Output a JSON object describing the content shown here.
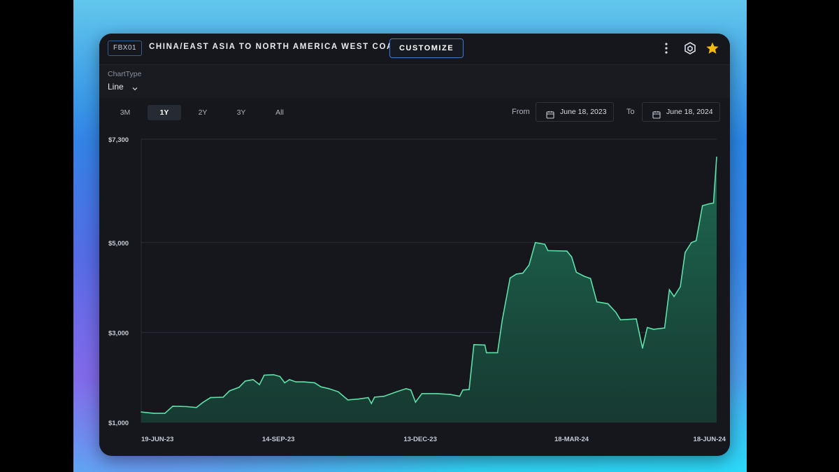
{
  "header": {
    "index_code": "FBX01",
    "route_title": "CHINA/EAST ASIA TO NORTH AMERICA WEST COAST",
    "customize_label": "CUSTOMIZE"
  },
  "icons": {
    "more": "more-vertical-icon",
    "share": "network-icon",
    "favorite": "star-icon"
  },
  "colors": {
    "line": "#5fe0a8",
    "fill_top": "#1e6e55",
    "fill_bottom": "#173d33",
    "star": "#f5b80f",
    "accent": "#3a7bd5"
  },
  "chart_type": {
    "label": "ChartType",
    "value": "Line"
  },
  "range": {
    "buttons": [
      "3M",
      "1Y",
      "2Y",
      "3Y",
      "All"
    ],
    "active": "1Y",
    "from_label": "From",
    "from_date": "June 18, 2023",
    "to_label": "To",
    "to_date": "June 18, 2024"
  },
  "chart_data": {
    "type": "area",
    "title": "",
    "xlabel": "",
    "ylabel": "",
    "x_tick_labels": [
      "19-JUN-23",
      "14-SEP-23",
      "13-DEC-23",
      "18-MAR-24",
      "18-JUN-24"
    ],
    "y_tick_labels": [
      "$1,000",
      "$3,000",
      "$5,000",
      "$7,300"
    ],
    "ylim": [
      1000,
      7300
    ],
    "grid": "horizontal",
    "x_start": "2023-06-19",
    "x_end": "2024-06-18",
    "series": [
      {
        "values": [
          [
            "2023-06-19",
            1230
          ],
          [
            "2023-06-27",
            1200
          ],
          [
            "2023-07-04",
            1200
          ],
          [
            "2023-07-09",
            1360
          ],
          [
            "2023-07-18",
            1350
          ],
          [
            "2023-07-24",
            1330
          ],
          [
            "2023-07-28",
            1440
          ],
          [
            "2023-08-02",
            1550
          ],
          [
            "2023-08-10",
            1560
          ],
          [
            "2023-08-14",
            1700
          ],
          [
            "2023-08-20",
            1780
          ],
          [
            "2023-08-24",
            1920
          ],
          [
            "2023-08-29",
            1950
          ],
          [
            "2023-09-02",
            1840
          ],
          [
            "2023-09-05",
            2050
          ],
          [
            "2023-09-11",
            2060
          ],
          [
            "2023-09-15",
            2020
          ],
          [
            "2023-09-18",
            1880
          ],
          [
            "2023-09-21",
            1950
          ],
          [
            "2023-09-25",
            1900
          ],
          [
            "2023-09-30",
            1900
          ],
          [
            "2023-10-07",
            1880
          ],
          [
            "2023-10-11",
            1790
          ],
          [
            "2023-10-16",
            1750
          ],
          [
            "2023-10-22",
            1680
          ],
          [
            "2023-10-28",
            1500
          ],
          [
            "2023-11-04",
            1520
          ],
          [
            "2023-11-10",
            1550
          ],
          [
            "2023-11-12",
            1420
          ],
          [
            "2023-11-14",
            1560
          ],
          [
            "2023-11-20",
            1580
          ],
          [
            "2023-11-28",
            1680
          ],
          [
            "2023-12-04",
            1750
          ],
          [
            "2023-12-07",
            1720
          ],
          [
            "2023-12-10",
            1450
          ],
          [
            "2023-12-14",
            1640
          ],
          [
            "2023-12-24",
            1640
          ],
          [
            "2024-01-01",
            1620
          ],
          [
            "2024-01-07",
            1580
          ],
          [
            "2024-01-09",
            1720
          ],
          [
            "2024-01-13",
            1730
          ],
          [
            "2024-01-16",
            2730
          ],
          [
            "2024-01-23",
            2720
          ],
          [
            "2024-01-24",
            2550
          ],
          [
            "2024-01-31",
            2550
          ],
          [
            "2024-02-03",
            3270
          ],
          [
            "2024-02-08",
            4210
          ],
          [
            "2024-02-12",
            4300
          ],
          [
            "2024-02-16",
            4320
          ],
          [
            "2024-02-20",
            4500
          ],
          [
            "2024-02-24",
            5000
          ],
          [
            "2024-03-01",
            4960
          ],
          [
            "2024-03-03",
            4820
          ],
          [
            "2024-03-15",
            4810
          ],
          [
            "2024-03-18",
            4680
          ],
          [
            "2024-03-21",
            4340
          ],
          [
            "2024-03-26",
            4250
          ],
          [
            "2024-03-30",
            4200
          ],
          [
            "2024-04-03",
            3680
          ],
          [
            "2024-04-10",
            3640
          ],
          [
            "2024-04-15",
            3450
          ],
          [
            "2024-04-18",
            3280
          ],
          [
            "2024-04-28",
            3300
          ],
          [
            "2024-05-02",
            2650
          ],
          [
            "2024-05-05",
            3110
          ],
          [
            "2024-05-09",
            3070
          ],
          [
            "2024-05-16",
            3100
          ],
          [
            "2024-05-19",
            3950
          ],
          [
            "2024-05-22",
            3800
          ],
          [
            "2024-05-26",
            4020
          ],
          [
            "2024-05-29",
            4780
          ],
          [
            "2024-06-02",
            5000
          ],
          [
            "2024-06-05",
            5040
          ],
          [
            "2024-06-09",
            5820
          ],
          [
            "2024-06-13",
            5860
          ],
          [
            "2024-06-16",
            5880
          ],
          [
            "2024-06-18",
            6900
          ]
        ]
      }
    ]
  }
}
